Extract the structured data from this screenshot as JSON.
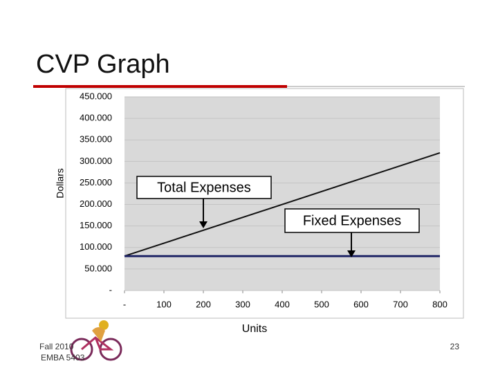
{
  "title": "CVP Graph",
  "chart_data": {
    "type": "line",
    "x_label": "Units",
    "y_label": "Dollars",
    "x": [
      0,
      800
    ],
    "series": [
      {
        "name": "Total Expenses",
        "color": "#111111",
        "values": [
          80000,
          320000
        ]
      },
      {
        "name": "Fixed Expenses",
        "color": "#1f2466",
        "values": [
          80000,
          80000
        ]
      }
    ],
    "xlim": [
      0,
      800
    ],
    "xticks": [
      {
        "value": 0,
        "label": "-"
      },
      100,
      200,
      300,
      400,
      500,
      600,
      700,
      800
    ],
    "ylim": [
      0,
      450000
    ],
    "yticks": [
      {
        "value": 0,
        "label": "-"
      },
      {
        "value": 50000,
        "label": "50.000"
      },
      {
        "value": 100000,
        "label": "100.000"
      },
      {
        "value": 150000,
        "label": "150.000"
      },
      {
        "value": 200000,
        "label": "200.000"
      },
      {
        "value": 250000,
        "label": "250.000"
      },
      {
        "value": 300000,
        "label": "300.000"
      },
      {
        "value": 350000,
        "label": "350.000"
      },
      {
        "value": 400000,
        "label": "400.000"
      },
      {
        "value": 450000,
        "label": "450.000"
      }
    ],
    "grid": true
  },
  "footer": {
    "line1": "Fall 2010",
    "line2": "EMBA 5403",
    "page": "23"
  }
}
